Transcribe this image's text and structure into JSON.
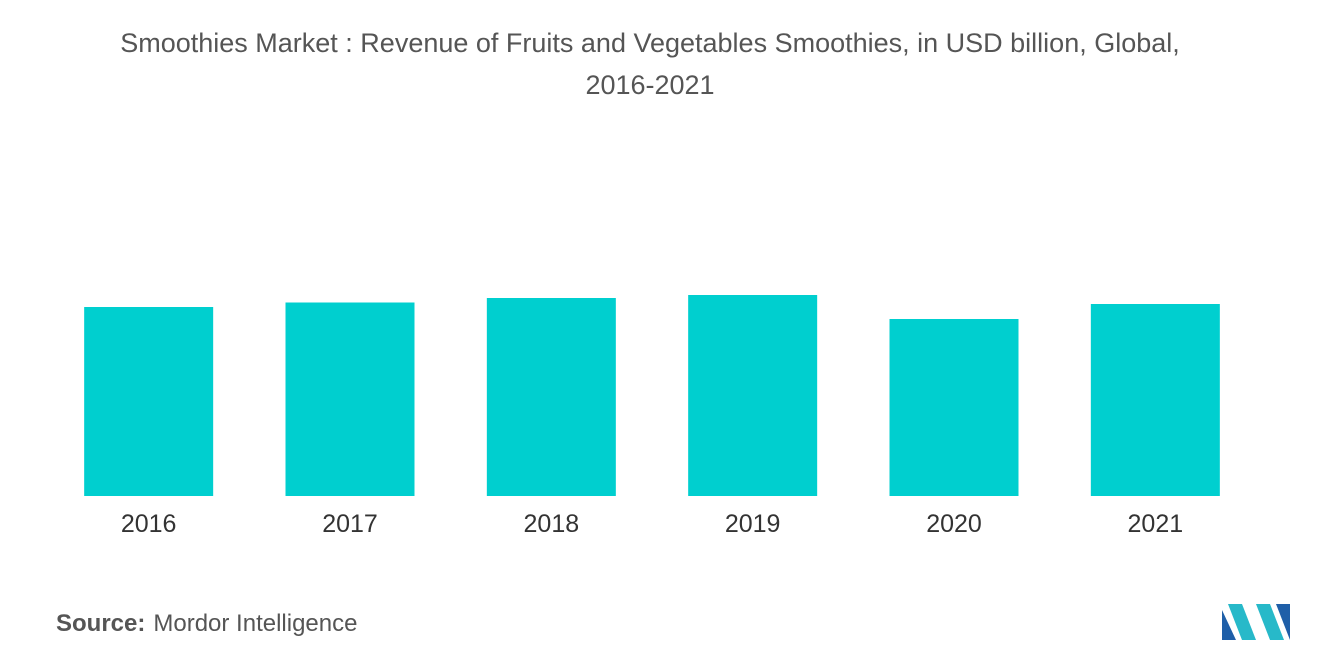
{
  "title": "Smoothies Market : Revenue of Fruits and Vegetables Smoothies, in USD billion, Global,\n2016-2021",
  "source": {
    "label": "Source:",
    "text": "Mordor Intelligence"
  },
  "logo": {
    "colors": [
      "#1f5fa8",
      "#27b9c9"
    ]
  },
  "chart_data": {
    "type": "bar",
    "title": "Smoothies Market : Revenue of Fruits and Vegetables Smoothies, in USD billion, Global, 2016-2021",
    "xlabel": "",
    "ylabel": "",
    "categories": [
      "2016",
      "2017",
      "2018",
      "2019",
      "2020",
      "2021"
    ],
    "values": [
      6.3,
      6.45,
      6.6,
      6.7,
      5.9,
      6.4
    ],
    "ylim": [
      0,
      10
    ],
    "color": "#00cfcf",
    "grid": false,
    "legend": "none"
  }
}
